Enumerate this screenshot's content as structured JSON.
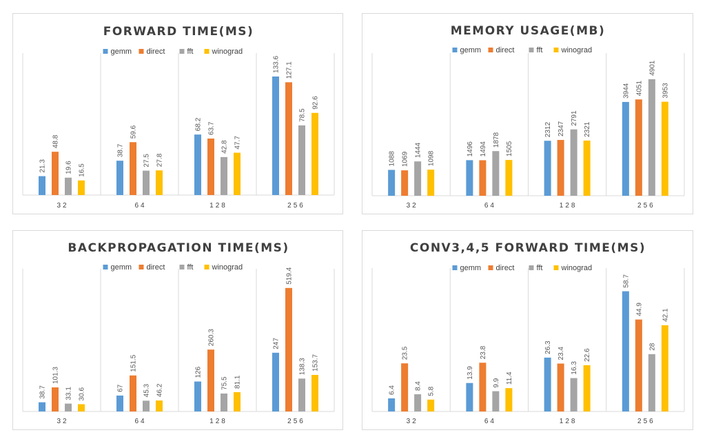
{
  "legend": [
    "gemm",
    "direct",
    "fft",
    "winograd"
  ],
  "colors": [
    "#5b9bd5",
    "#ed7d31",
    "#a5a5a5",
    "#ffc000"
  ],
  "chart_data": [
    {
      "type": "bar",
      "title": "FORWARD TIME(MS)",
      "categories": [
        "32",
        "64",
        "128",
        "256"
      ],
      "ymax": 160,
      "series": [
        {
          "name": "gemm",
          "values": [
            21.3,
            38.7,
            68.2,
            133.6
          ],
          "labels": [
            "21.3",
            "38.7",
            "68.2",
            "133.6"
          ]
        },
        {
          "name": "direct",
          "values": [
            48.8,
            59.6,
            63.7,
            127.1
          ],
          "labels": [
            "48.8",
            "59.6",
            "63.7",
            "127.1"
          ]
        },
        {
          "name": "fft",
          "values": [
            19.6,
            27.5,
            42.8,
            78.5
          ],
          "labels": [
            "19.6",
            "27.5",
            "42.8",
            "78.5"
          ]
        },
        {
          "name": "winograd",
          "values": [
            16.5,
            27.8,
            47.7,
            92.6
          ],
          "labels": [
            "16.5",
            "27.8",
            "47.7",
            "92.6"
          ]
        }
      ]
    },
    {
      "type": "bar",
      "title": "MEMORY USAGE(MB)",
      "categories": [
        "32",
        "64",
        "128",
        "256"
      ],
      "ymax": 6000,
      "series": [
        {
          "name": "gemm",
          "values": [
            1088,
            1496,
            2312,
            3944
          ],
          "labels": [
            "1088",
            "1496",
            "2312",
            "3944"
          ]
        },
        {
          "name": "direct",
          "values": [
            1069,
            1494,
            2347,
            4051
          ],
          "labels": [
            "1069",
            "1494",
            "2347",
            "4051"
          ]
        },
        {
          "name": "fft",
          "values": [
            1444,
            1878,
            2791,
            4901
          ],
          "labels": [
            "1444",
            "1878",
            "2791",
            "4901"
          ]
        },
        {
          "name": "winograd",
          "values": [
            1098,
            1505,
            2321,
            3953
          ],
          "labels": [
            "1098",
            "1505",
            "2321",
            "3953"
          ]
        }
      ]
    },
    {
      "type": "bar",
      "title": "BACKPROPAGATION TIME(MS)",
      "categories": [
        "32",
        "64",
        "128",
        "256"
      ],
      "ymax": 600,
      "series": [
        {
          "name": "gemm",
          "values": [
            38.7,
            67,
            126,
            247
          ],
          "labels": [
            "38.7",
            "67",
            "126",
            "247"
          ]
        },
        {
          "name": "direct",
          "values": [
            101.3,
            151.5,
            260.3,
            519.4
          ],
          "labels": [
            "101.3",
            "151.5",
            "260.3",
            "519.4"
          ]
        },
        {
          "name": "fft",
          "values": [
            33.1,
            45.3,
            75.5,
            138.3
          ],
          "labels": [
            "33.1",
            "45.3",
            "75.5",
            "138.3"
          ]
        },
        {
          "name": "winograd",
          "values": [
            30.6,
            46.2,
            81.1,
            153.7
          ],
          "labels": [
            "30.6",
            "46.2",
            "81.1",
            "153.7"
          ]
        }
      ]
    },
    {
      "type": "bar",
      "title": "CONV3,4,5 FORWARD TIME(MS)",
      "categories": [
        "32",
        "64",
        "128",
        "256"
      ],
      "ymax": 70,
      "series": [
        {
          "name": "gemm",
          "values": [
            6.4,
            13.9,
            26.3,
            58.7
          ],
          "labels": [
            "6.4",
            "13.9",
            "26.3",
            "58.7"
          ]
        },
        {
          "name": "direct",
          "values": [
            23.5,
            23.8,
            23.4,
            44.9
          ],
          "labels": [
            "23.5",
            "23.8",
            "23.4",
            "44.9"
          ]
        },
        {
          "name": "fft",
          "values": [
            8.4,
            9.9,
            16.3,
            28
          ],
          "labels": [
            "8.4",
            "9.9",
            "16.3",
            "28"
          ]
        },
        {
          "name": "winograd",
          "values": [
            5.8,
            11.4,
            22.6,
            42.1
          ],
          "labels": [
            "5.8",
            "11.4",
            "22.6",
            "42.1"
          ]
        }
      ]
    }
  ]
}
